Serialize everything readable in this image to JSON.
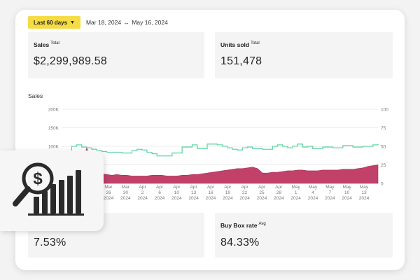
{
  "toolbar": {
    "range_label": "Last 60 days",
    "range_caret_icon": "caret-down-icon",
    "date_start": "Mar 18, 2024",
    "date_arrow": "↔",
    "date_end": "May 16, 2024"
  },
  "metrics": {
    "sales": {
      "label": "Sales",
      "qualifier": "Total",
      "value": "$2,299,989.58"
    },
    "units": {
      "label": "Units sold",
      "qualifier": "Total",
      "value": "151,478"
    },
    "conversion": {
      "value": "7.53%"
    },
    "buybox": {
      "label": "Buy Box rate",
      "qualifier": "Avg",
      "value": "84.33%"
    }
  },
  "colors": {
    "accent_yellow": "#f5dc44",
    "sales_area": "#c2416b",
    "units_line": "#66d6a8",
    "card_bg": "#f4f4f4"
  },
  "overlay": {
    "icon": "sales-analytics-magnifier-icon"
  },
  "chart_data": {
    "type": "area",
    "title": "Sales",
    "left_axis": {
      "ticks": [
        "200K",
        "150K",
        "100K"
      ]
    },
    "right_axis": {
      "ticks": [
        "100",
        "75",
        "50",
        "25",
        "0"
      ],
      "ylim": [
        0,
        100
      ]
    },
    "x_tick_labels": [
      [
        "Mar",
        "26",
        "2024"
      ],
      [
        "Mar",
        "30",
        "2024"
      ],
      [
        "Apr",
        "2",
        "2024"
      ],
      [
        "Apr",
        "6",
        "2024"
      ],
      [
        "Apr",
        "10",
        "2024"
      ],
      [
        "Apr",
        "13",
        "2024"
      ],
      [
        "Apr",
        "16",
        "2024"
      ],
      [
        "Apr",
        "19",
        "2024"
      ],
      [
        "Apr",
        "22",
        "2024"
      ],
      [
        "Apr",
        "25",
        "2024"
      ],
      [
        "Apr",
        "28",
        "2024"
      ],
      [
        "May",
        "1",
        "2024"
      ],
      [
        "May",
        "4",
        "2024"
      ],
      [
        "May",
        "7",
        "2024"
      ],
      [
        "May",
        "10",
        "2024"
      ],
      [
        "May",
        "13",
        "2024"
      ]
    ],
    "series": [
      {
        "kind": "area",
        "axis": "right",
        "values": [
          8,
          9,
          11,
          14,
          24,
          48,
          30,
          15,
          13,
          12,
          11,
          12,
          11,
          11,
          10,
          10,
          10,
          10,
          11,
          11,
          11,
          10,
          10,
          10,
          11,
          11,
          12,
          12,
          13,
          14,
          15,
          16,
          17,
          18,
          19,
          20,
          20,
          21,
          22,
          20,
          14,
          14,
          15,
          15,
          16,
          17,
          17,
          18,
          18,
          17,
          17,
          17,
          18,
          18,
          18,
          18,
          19,
          19,
          19,
          20,
          21,
          23,
          24,
          25
        ]
      },
      {
        "kind": "step",
        "axis": "right",
        "values": [
          32,
          36,
          50,
          52,
          49,
          48,
          46,
          44,
          43,
          42,
          42,
          42,
          41,
          41,
          44,
          46,
          45,
          42,
          40,
          37,
          37,
          37,
          41,
          41,
          49,
          49,
          52,
          47,
          47,
          53,
          53,
          52,
          50,
          48,
          46,
          45,
          48,
          49,
          47,
          47,
          46,
          46,
          50,
          52,
          50,
          48,
          50,
          53,
          49,
          50,
          47,
          47,
          49,
          49,
          48,
          48,
          51,
          51,
          49,
          49,
          50,
          50,
          52,
          53
        ]
      }
    ]
  }
}
